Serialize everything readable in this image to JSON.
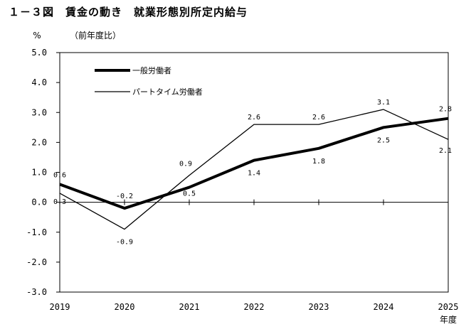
{
  "title": "１－３図　賃金の動き　就業形態別所定内給与",
  "chart_data": {
    "type": "line",
    "ylabel": "%",
    "subtitle": "（前年度比）",
    "xunit": "年度",
    "x": [
      "2019",
      "2020",
      "2021",
      "2022",
      "2023",
      "2024",
      "2025"
    ],
    "ylim": [
      -3.0,
      5.0
    ],
    "yticks": [
      "5.0",
      "4.0",
      "3.0",
      "2.0",
      "1.0",
      "0.0",
      "-1.0",
      "-2.0",
      "-3.0"
    ],
    "series": [
      {
        "name": "一般労働者",
        "values": [
          0.6,
          -0.2,
          0.5,
          1.4,
          1.8,
          2.5,
          2.8
        ],
        "labels": [
          "0.6",
          "-0.2",
          "0.5",
          "1.4",
          "1.8",
          "2.5",
          "2.8"
        ],
        "style": "thick"
      },
      {
        "name": "パートタイム労働者",
        "values": [
          0.3,
          -0.9,
          0.9,
          2.6,
          2.6,
          3.1,
          2.1
        ],
        "labels": [
          "0.3",
          "-0.9",
          "0.9",
          "2.6",
          "2.6",
          "3.1",
          "2.1"
        ],
        "style": "thin"
      }
    ],
    "legend": "top-left",
    "grid": false,
    "colors": {
      "line": "#000000",
      "axis": "#000000"
    }
  }
}
